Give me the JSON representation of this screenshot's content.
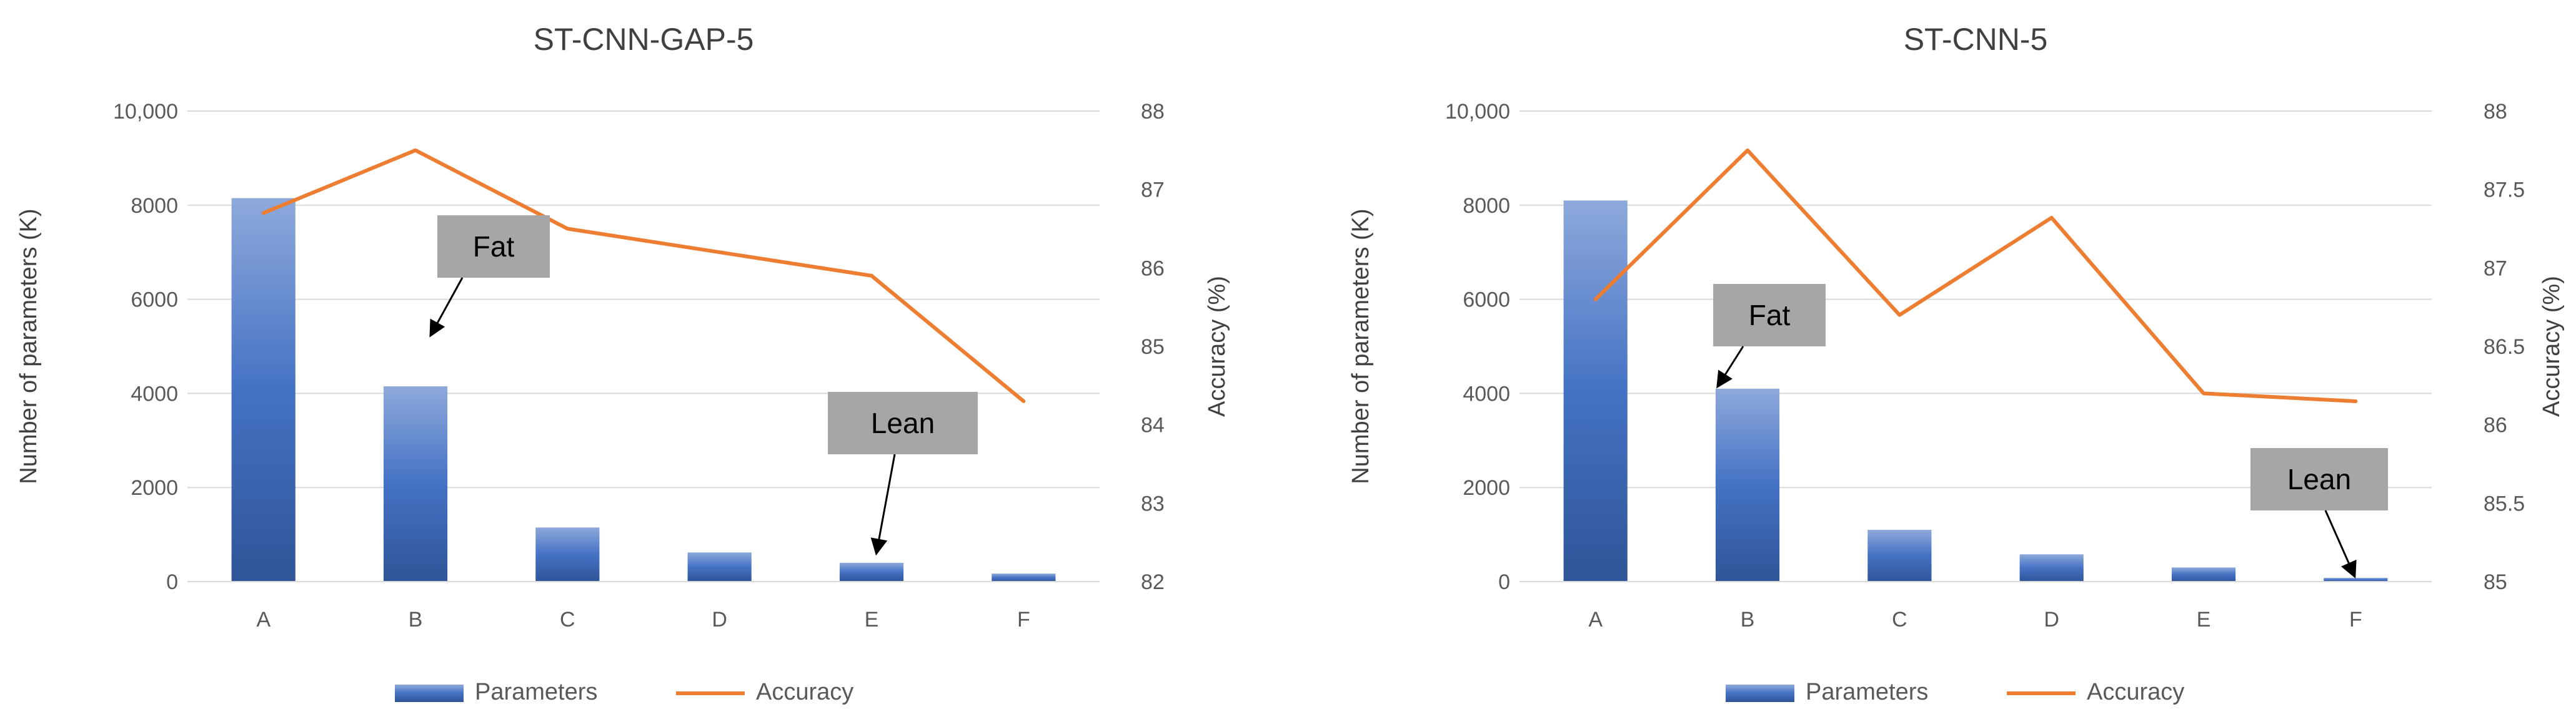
{
  "colors": {
    "bar_light": "#8EA9DB",
    "bar_mid": "#4472C4",
    "bar_dark": "#2F5597",
    "line": "#ED7D31",
    "grid": "#D9D9D9",
    "axis_text": "#595959",
    "callout_fill": "#A6A6A6"
  },
  "chart_data": [
    {
      "type": "bar",
      "title": "ST-CNN-GAP-5",
      "categories": [
        "A",
        "B",
        "C",
        "D",
        "E",
        "F"
      ],
      "series": [
        {
          "name": "Parameters",
          "type": "bar",
          "axis": "left",
          "values": [
            8150,
            4150,
            1150,
            620,
            400,
            170
          ]
        },
        {
          "name": "Accuracy",
          "type": "line",
          "axis": "right",
          "values": [
            86.7,
            87.5,
            86.5,
            86.2,
            85.9,
            84.3
          ]
        }
      ],
      "ylabel": "Number  of parameters (K)",
      "y2label": "Accuracy (%)",
      "ylim": [
        0,
        10000
      ],
      "y2lim": [
        82,
        88
      ],
      "yticks": [
        0,
        2000,
        4000,
        6000,
        8000,
        10000
      ],
      "yticklabels": [
        "0",
        "2000",
        "4000",
        "6000",
        "8000",
        "10,000"
      ],
      "y2ticks": [
        82,
        83,
        84,
        85,
        86,
        87,
        88
      ],
      "y2ticklabels": [
        "82",
        "83",
        "84",
        "85",
        "86",
        "87",
        "88"
      ],
      "grid": true,
      "legend": "bottom",
      "annotations": [
        {
          "text": "Fat",
          "points_to": "B"
        },
        {
          "text": "Lean",
          "points_to": "E"
        }
      ]
    },
    {
      "type": "bar",
      "title": "ST-CNN-5",
      "categories": [
        "A",
        "B",
        "C",
        "D",
        "E",
        "F"
      ],
      "series": [
        {
          "name": "Parameters",
          "type": "bar",
          "axis": "left",
          "values": [
            8100,
            4100,
            1100,
            580,
            300,
            80
          ]
        },
        {
          "name": "Accuracy",
          "type": "line",
          "axis": "right",
          "values": [
            86.8,
            87.75,
            86.7,
            87.32,
            86.2,
            86.15
          ]
        }
      ],
      "ylabel": "Number  of parameters (K)",
      "y2label": "Accuracy (%)",
      "ylim": [
        0,
        10000
      ],
      "y2lim": [
        85,
        88
      ],
      "yticks": [
        0,
        2000,
        4000,
        6000,
        8000,
        10000
      ],
      "yticklabels": [
        "0",
        "2000",
        "4000",
        "6000",
        "8000",
        "10,000"
      ],
      "y2ticks": [
        85,
        85.5,
        86,
        86.5,
        87,
        87.5,
        88
      ],
      "y2ticklabels": [
        "85",
        "85.5",
        "86",
        "86.5",
        "87",
        "87.5",
        "88"
      ],
      "grid": true,
      "legend": "bottom",
      "annotations": [
        {
          "text": "Fat",
          "points_to": "B"
        },
        {
          "text": "Lean",
          "points_to": "F"
        }
      ]
    }
  ]
}
